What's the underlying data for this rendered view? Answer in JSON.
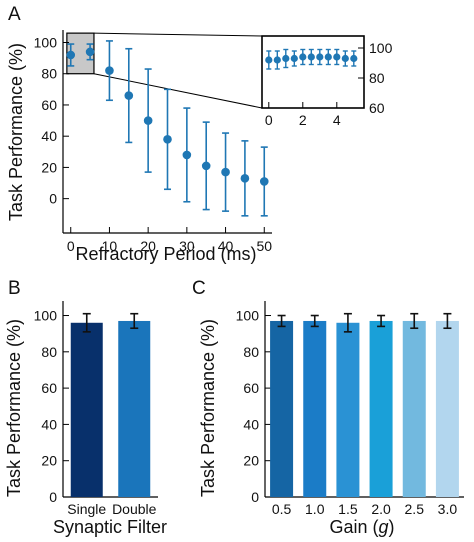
{
  "figure": {
    "panel_labels": [
      "A",
      "B",
      "C"
    ]
  },
  "chart_data": [
    {
      "panel": "A",
      "type": "scatter",
      "xlabel": "Refractory Period (ms)",
      "ylabel": "Task Performance (%)",
      "xlim": [
        -2,
        52
      ],
      "ylim": [
        -22,
        108
      ],
      "xticks": [
        0,
        10,
        20,
        30,
        40,
        50
      ],
      "yticks": [
        0,
        20,
        40,
        60,
        80,
        100
      ],
      "color": "#1f77b4",
      "points": [
        {
          "x": 0,
          "y": 92,
          "err": 7
        },
        {
          "x": 5,
          "y": 94,
          "err": 5
        },
        {
          "x": 10,
          "y": 82,
          "err": 19
        },
        {
          "x": 15,
          "y": 66,
          "err": 30
        },
        {
          "x": 20,
          "y": 50,
          "err": 33
        },
        {
          "x": 25,
          "y": 38,
          "err": 32
        },
        {
          "x": 30,
          "y": 28,
          "err": 30
        },
        {
          "x": 35,
          "y": 21,
          "err": 28
        },
        {
          "x": 40,
          "y": 17,
          "err": 25
        },
        {
          "x": 45,
          "y": 13,
          "err": 24
        },
        {
          "x": 50,
          "y": 11,
          "err": 22
        }
      ],
      "zoom_box": {
        "x0": -1,
        "x1": 6,
        "y0": 80,
        "y1": 106,
        "fill": "#c8c8c8"
      },
      "inset": {
        "xlim": [
          -0.4,
          5.6
        ],
        "ylim": [
          60,
          108
        ],
        "xticks": [
          0,
          2,
          4
        ],
        "yticks": [
          60,
          80,
          100
        ],
        "points": [
          {
            "x": 0,
            "y": 92,
            "err": 6
          },
          {
            "x": 0.5,
            "y": 92,
            "err": 6
          },
          {
            "x": 1,
            "y": 93,
            "err": 6
          },
          {
            "x": 1.5,
            "y": 93,
            "err": 5
          },
          {
            "x": 2,
            "y": 94,
            "err": 5
          },
          {
            "x": 2.5,
            "y": 94,
            "err": 5
          },
          {
            "x": 3,
            "y": 94,
            "err": 5
          },
          {
            "x": 3.5,
            "y": 94,
            "err": 5
          },
          {
            "x": 4,
            "y": 94,
            "err": 5
          },
          {
            "x": 4.5,
            "y": 93,
            "err": 5
          },
          {
            "x": 5,
            "y": 93,
            "err": 5
          }
        ]
      }
    },
    {
      "panel": "B",
      "type": "bar",
      "xlabel": "Synaptic Filter",
      "ylabel": "Task Performance (%)",
      "ylim": [
        0,
        108
      ],
      "yticks": [
        0,
        20,
        40,
        60,
        80,
        100
      ],
      "categories": [
        "Single",
        "Double"
      ],
      "values": [
        96,
        97
      ],
      "errors": [
        5,
        4
      ],
      "colors": [
        "#08306b",
        "#1a75bb"
      ]
    },
    {
      "panel": "C",
      "type": "bar",
      "xlabel": "Gain (g)",
      "xlabel_main": "Gain (",
      "xlabel_var": "g",
      "xlabel_end": ")",
      "ylabel": "Task Performance (%)",
      "ylim": [
        0,
        108
      ],
      "yticks": [
        0,
        20,
        40,
        60,
        80,
        100
      ],
      "categories": [
        "0.5",
        "1.0",
        "1.5",
        "2.0",
        "2.5",
        "3.0"
      ],
      "values": [
        97,
        97,
        96,
        97,
        97,
        97
      ],
      "errors": [
        3,
        3,
        5,
        3,
        4,
        4
      ],
      "colors": [
        "#1565a4",
        "#1b7cc7",
        "#2a92d4",
        "#1aa0d8",
        "#72b9df",
        "#b2d6ee"
      ]
    }
  ]
}
